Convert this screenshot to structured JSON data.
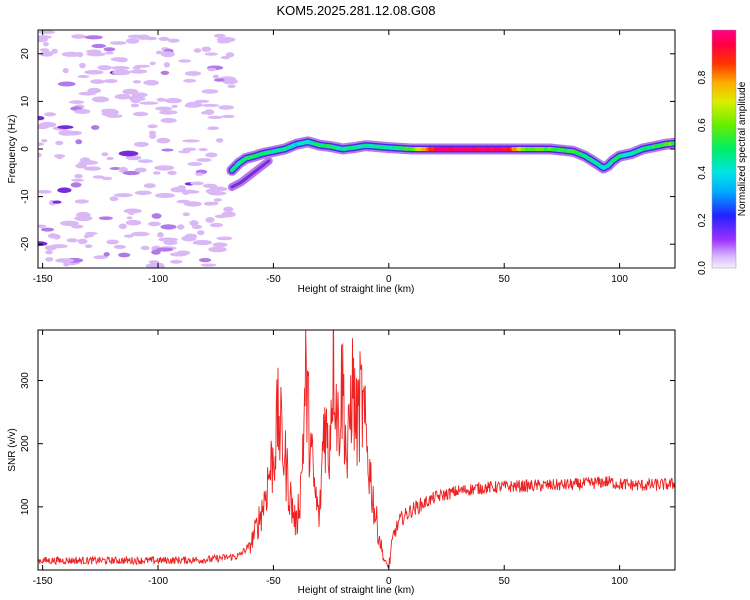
{
  "chart_data": [
    {
      "type": "heatmap",
      "title": "KOM5.2025.281.12.08.G08",
      "xlabel": "Height of straight line (km)",
      "ylabel": "Frequency (Hz)",
      "xlim": [
        -152,
        124
      ],
      "ylim": [
        -25,
        25
      ],
      "x_ticks": [
        -150,
        -100,
        -50,
        0,
        50,
        100
      ],
      "y_ticks": [
        -20,
        -10,
        0,
        10,
        20
      ],
      "colorbar": {
        "label": "Normalized spectral amplitude",
        "range": [
          0,
          1
        ],
        "ticks": [
          "0.0",
          "0.2",
          "0.4",
          "0.6",
          "0.8"
        ],
        "tick_values": [
          0.0,
          0.2,
          0.4,
          0.6,
          0.8
        ]
      },
      "ridge_frequency": {
        "height_km": [
          -68,
          -65,
          -62,
          -58,
          -55,
          -50,
          -45,
          -40,
          -35,
          -30,
          -25,
          -20,
          -15,
          -10,
          -5,
          0,
          10,
          20,
          30,
          40,
          50,
          60,
          70,
          80,
          85,
          90,
          93,
          95,
          97,
          100,
          105,
          110,
          115,
          120,
          124
        ],
        "frequency_hz": [
          -4.5,
          -3,
          -2,
          -1.5,
          -1,
          -0.5,
          0,
          1,
          1.5,
          0.8,
          0.5,
          0,
          0.3,
          0.7,
          0.5,
          0.3,
          0,
          0,
          0,
          0,
          0,
          0,
          0,
          -0.5,
          -1.5,
          -3,
          -4,
          -3.5,
          -2.5,
          -1.5,
          -1,
          0,
          0.5,
          1,
          1.2
        ],
        "amplitude": [
          0.42,
          0.45,
          0.48,
          0.45,
          0.5,
          0.45,
          0.48,
          0.4,
          0.45,
          0.5,
          0.5,
          0.45,
          0.48,
          0.45,
          0.45,
          0.45,
          0.55,
          0.95,
          0.95,
          0.95,
          0.95,
          0.6,
          0.55,
          0.5,
          0.48,
          0.45,
          0.42,
          0.42,
          0.45,
          0.48,
          0.45,
          0.48,
          0.5,
          0.55,
          0.6
        ]
      },
      "noise_region_km": [
        -152,
        -68
      ]
    },
    {
      "type": "line",
      "xlabel": "Height of straight line (km)",
      "ylabel": "SNR (v/v)",
      "xlim": [
        -152,
        124
      ],
      "ylim": [
        0,
        380
      ],
      "x_ticks": [
        -150,
        -100,
        -50,
        0,
        50,
        100
      ],
      "y_ticks": [
        100,
        200,
        300
      ],
      "series": [
        {
          "name": "SNR",
          "color": "#ee2222",
          "x": [
            -152,
            -140,
            -120,
            -100,
            -80,
            -65,
            -60,
            -57,
            -54,
            -52,
            -50,
            -48,
            -46,
            -44,
            -42,
            -40,
            -38,
            -36,
            -34,
            -32,
            -30,
            -28,
            -26,
            -24,
            -22,
            -20,
            -18,
            -16,
            -14,
            -12,
            -10,
            -8,
            -6,
            -4,
            -2,
            0,
            2,
            5,
            10,
            15,
            20,
            25,
            30,
            40,
            50,
            60,
            70,
            80,
            90,
            95,
            100,
            110,
            124
          ],
          "y": [
            15,
            15,
            15,
            15,
            16,
            22,
            40,
            70,
            110,
            150,
            180,
            240,
            200,
            150,
            100,
            70,
            140,
            300,
            200,
            120,
            80,
            250,
            180,
            350,
            230,
            300,
            160,
            300,
            230,
            270,
            210,
            150,
            90,
            50,
            15,
            5,
            55,
            80,
            95,
            105,
            115,
            120,
            125,
            130,
            132,
            133,
            134,
            135,
            138,
            140,
            136,
            134,
            136
          ]
        }
      ]
    }
  ],
  "colors": {
    "line": "#ee2222",
    "axes": "#000000"
  }
}
